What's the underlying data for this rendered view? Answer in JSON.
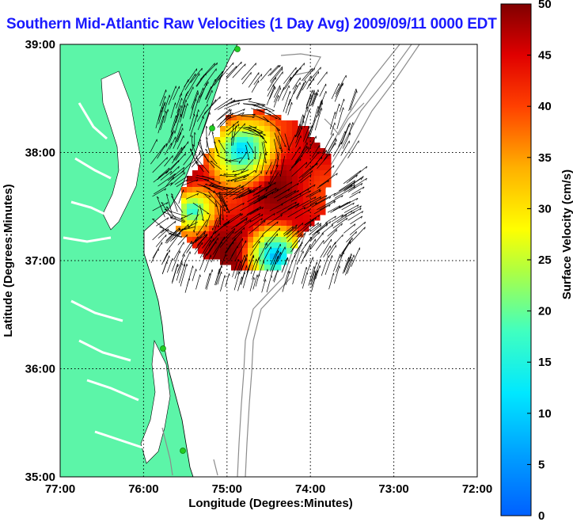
{
  "title": "Southern Mid-Atlantic Raw Velocities (1 Day Avg) 2009/09/11 0000 EDT",
  "map": {
    "region": "Southern Mid-Atlantic",
    "x_label": "Longitude (Degrees:Minutes)",
    "y_label": "Latitude (Degrees:Minutes)",
    "x_ticks": [
      "77:00",
      "76:00",
      "75:00",
      "74:00",
      "73:00",
      "72:00"
    ],
    "y_ticks": [
      "39:00",
      "38:00",
      "37:00",
      "36:00",
      "35:00"
    ],
    "grid": "dotted",
    "land_color": "#5cf5a8",
    "water_color": "#ffffff",
    "bathymetry_color": "#8c8c8c",
    "station_marker_color": "#22cc22"
  },
  "colorbar": {
    "label": "Surface Velocity (cm/s)",
    "ticks": [
      "50",
      "45",
      "40",
      "35",
      "30",
      "25",
      "20",
      "15",
      "10",
      "5",
      "0"
    ],
    "range": [
      0,
      50
    ],
    "colormap": "jet"
  },
  "features": {
    "eddy_1": {
      "speed_cm_s": 8
    },
    "eddy_2": {
      "speed_cm_s": 14
    },
    "slow_patch_south": {
      "speed_cm_s": 6
    }
  }
}
